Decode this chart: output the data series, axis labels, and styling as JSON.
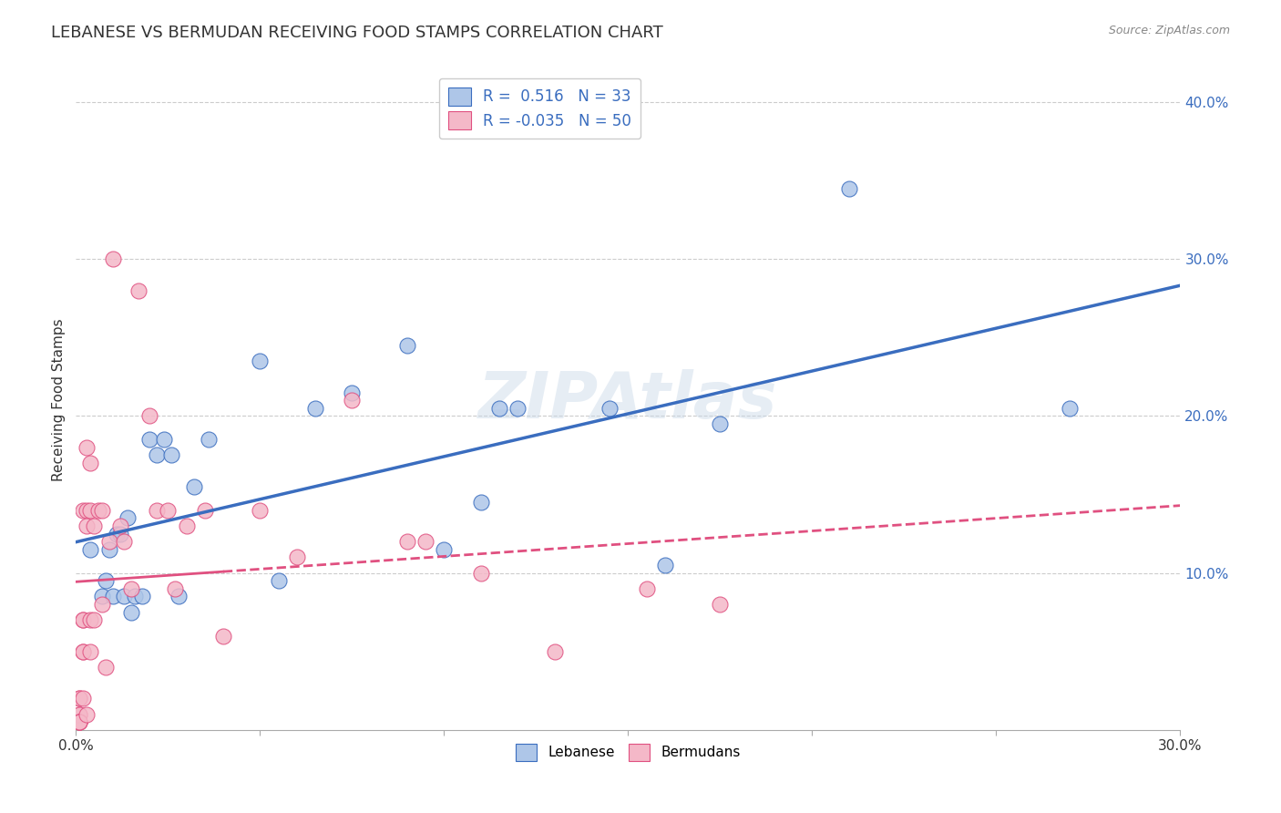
{
  "title": "LEBANESE VS BERMUDAN RECEIVING FOOD STAMPS CORRELATION CHART",
  "source": "Source: ZipAtlas.com",
  "ylabel": "Receiving Food Stamps",
  "xlim": [
    0.0,
    0.3
  ],
  "ylim": [
    0.0,
    0.42
  ],
  "xtick_labels": [
    "0.0%",
    "",
    "",
    "",
    "",
    "",
    "30.0%"
  ],
  "xtick_values": [
    0.0,
    0.05,
    0.1,
    0.15,
    0.2,
    0.25,
    0.3
  ],
  "ytick_labels": [
    "10.0%",
    "20.0%",
    "30.0%",
    "40.0%"
  ],
  "ytick_values": [
    0.1,
    0.2,
    0.3,
    0.4
  ],
  "grid_color": "#cccccc",
  "background_color": "#ffffff",
  "title_fontsize": 13,
  "axis_label_fontsize": 11,
  "legend_color_1": "#aec6e8",
  "legend_color_2": "#f4b8c8",
  "dot_color_blue": "#aec6e8",
  "dot_color_pink": "#f4b8c8",
  "line_color_blue": "#3a6dbf",
  "line_color_pink": "#e05080",
  "watermark": "ZIPAtlas",
  "legend_label_1": "Lebanese",
  "legend_label_2": "Bermudans",
  "blue_x": [
    0.004,
    0.007,
    0.008,
    0.009,
    0.01,
    0.011,
    0.012,
    0.013,
    0.014,
    0.015,
    0.016,
    0.018,
    0.02,
    0.022,
    0.024,
    0.026,
    0.028,
    0.032,
    0.036,
    0.05,
    0.055,
    0.065,
    0.075,
    0.09,
    0.1,
    0.11,
    0.115,
    0.12,
    0.145,
    0.16,
    0.175,
    0.21,
    0.27
  ],
  "blue_y": [
    0.115,
    0.085,
    0.095,
    0.115,
    0.085,
    0.125,
    0.125,
    0.085,
    0.135,
    0.075,
    0.085,
    0.085,
    0.185,
    0.175,
    0.185,
    0.175,
    0.085,
    0.155,
    0.185,
    0.235,
    0.095,
    0.205,
    0.215,
    0.245,
    0.115,
    0.145,
    0.205,
    0.205,
    0.205,
    0.105,
    0.195,
    0.345,
    0.205
  ],
  "pink_x": [
    0.001,
    0.001,
    0.001,
    0.001,
    0.001,
    0.001,
    0.001,
    0.001,
    0.002,
    0.002,
    0.002,
    0.002,
    0.002,
    0.002,
    0.003,
    0.003,
    0.003,
    0.003,
    0.004,
    0.004,
    0.004,
    0.004,
    0.005,
    0.005,
    0.006,
    0.007,
    0.007,
    0.008,
    0.009,
    0.01,
    0.012,
    0.013,
    0.015,
    0.017,
    0.02,
    0.022,
    0.025,
    0.027,
    0.03,
    0.035,
    0.04,
    0.05,
    0.06,
    0.075,
    0.09,
    0.095,
    0.11,
    0.13,
    0.155,
    0.175
  ],
  "pink_y": [
    0.01,
    0.02,
    0.01,
    0.02,
    0.005,
    0.005,
    0.005,
    0.005,
    0.14,
    0.07,
    0.07,
    0.02,
    0.05,
    0.05,
    0.01,
    0.14,
    0.13,
    0.18,
    0.17,
    0.14,
    0.07,
    0.05,
    0.07,
    0.13,
    0.14,
    0.14,
    0.08,
    0.04,
    0.12,
    0.3,
    0.13,
    0.12,
    0.09,
    0.28,
    0.2,
    0.14,
    0.14,
    0.09,
    0.13,
    0.14,
    0.06,
    0.14,
    0.11,
    0.21,
    0.12,
    0.12,
    0.1,
    0.05,
    0.09,
    0.08
  ]
}
